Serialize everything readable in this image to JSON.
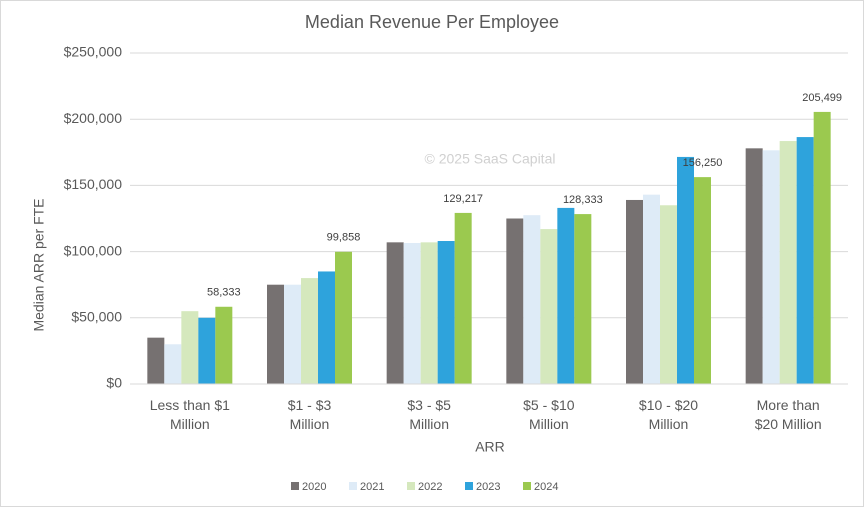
{
  "chart_data": {
    "type": "bar",
    "title": "Median Revenue Per Employee",
    "x_label": "ARR",
    "y_label": "Median ARR per FTE",
    "annotation": "© 2025 SaaS Capital",
    "categories": [
      [
        "Less than $1",
        "Million"
      ],
      [
        "$1 - $3",
        "Million"
      ],
      [
        "$3 - $5",
        "Million"
      ],
      [
        "$5 - $10",
        "Million"
      ],
      [
        "$10 - $20",
        "Million"
      ],
      [
        "More than",
        "$20 Million"
      ]
    ],
    "series": [
      {
        "name": "2020",
        "color": "#767171",
        "values": [
          35000,
          75000,
          107000,
          125000,
          139000,
          178000
        ]
      },
      {
        "name": "2021",
        "color": "#deebf7",
        "values": [
          30000,
          75000,
          106500,
          127500,
          143000,
          176500
        ]
      },
      {
        "name": "2022",
        "color": "#d5e8bd",
        "values": [
          55000,
          80000,
          107000,
          117000,
          135000,
          183500
        ]
      },
      {
        "name": "2023",
        "color": "#2ea3dc",
        "values": [
          50000,
          85000,
          108000,
          133000,
          171500,
          186500
        ]
      },
      {
        "name": "2024",
        "color": "#9bc94f",
        "values": [
          58333,
          99858,
          129217,
          128333,
          156250,
          205499
        ],
        "value_labels": [
          "58,333",
          "99,858",
          "129,217",
          "128,333",
          "156,250",
          "205,499"
        ]
      }
    ],
    "ylim": [
      0,
      250000
    ],
    "yticks": [
      {
        "value": 0,
        "label": "$0"
      },
      {
        "value": 50000,
        "label": "$50,000"
      },
      {
        "value": 100000,
        "label": "$100,000"
      },
      {
        "value": 150000,
        "label": "$150,000"
      },
      {
        "value": 200000,
        "label": "$200,000"
      },
      {
        "value": 250000,
        "label": "$250,000"
      }
    ],
    "grid": true,
    "legend": "bottom"
  }
}
